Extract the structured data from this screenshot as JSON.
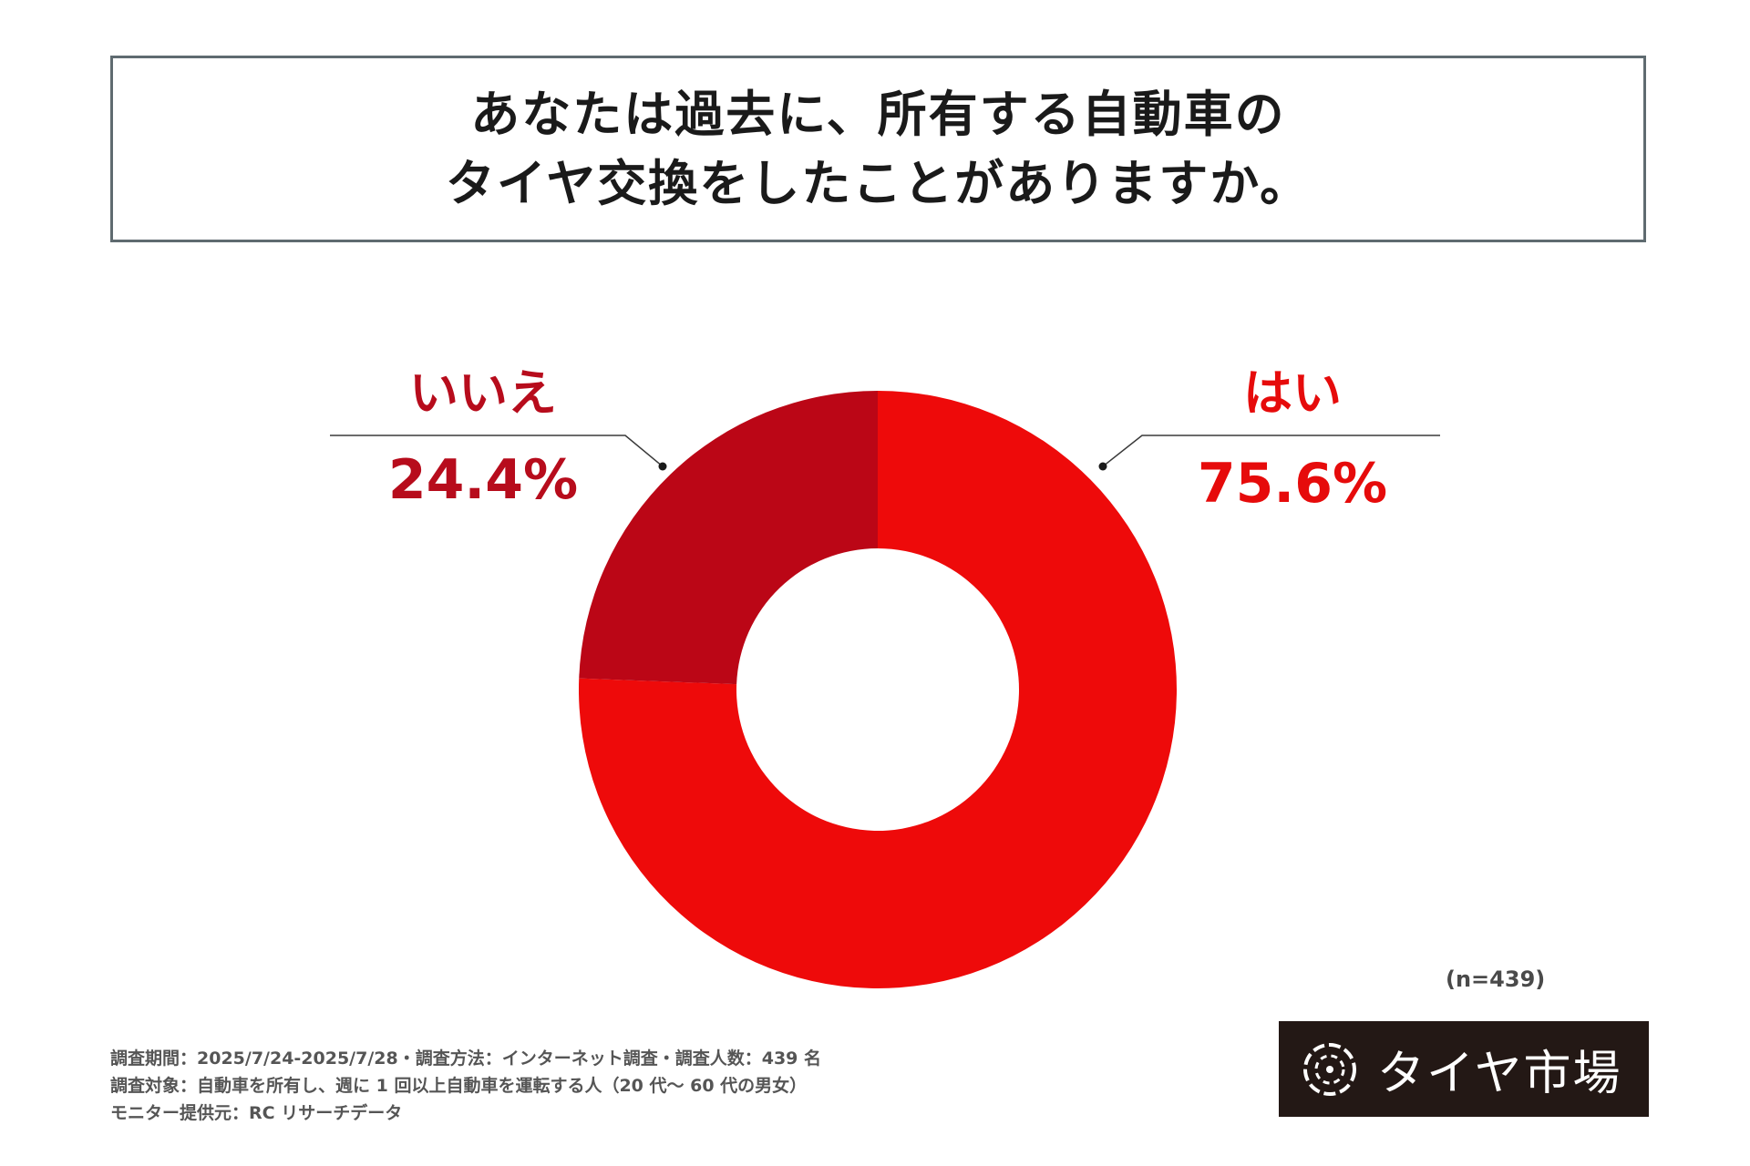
{
  "title": {
    "line1": "あなたは過去に、所有する自動車の",
    "line2": "タイヤ交換をしたことがありますか。"
  },
  "chart_data": {
    "type": "pie",
    "donut": true,
    "slices": [
      {
        "label": "はい",
        "value": 75.6,
        "display": "75.6%",
        "color": "#ee0a0a",
        "label_color": "#e60b0b"
      },
      {
        "label": "いいえ",
        "value": 24.4,
        "display": "24.4%",
        "color": "#bb0616",
        "label_color": "#b70c1c"
      }
    ],
    "start": "12 o'clock, clockwise"
  },
  "sample_size": "(n=439)",
  "footnotes": [
    "調査期間：2025/7/24-2025/7/28・調査方法：インターネット調査・調査人数：439 名",
    "調査対象：自動車を所有し、週に 1 回以上自動車を運転する人（20 代〜 60 代の男女）",
    "モニター提供元：RC リサーチデータ"
  ],
  "logo": {
    "icon": "tire-logo-icon",
    "text": "タイヤ市場",
    "background": "#231815"
  },
  "colors": {
    "title_border": "#5f6b70",
    "leader_line": "#3a3a3a"
  }
}
